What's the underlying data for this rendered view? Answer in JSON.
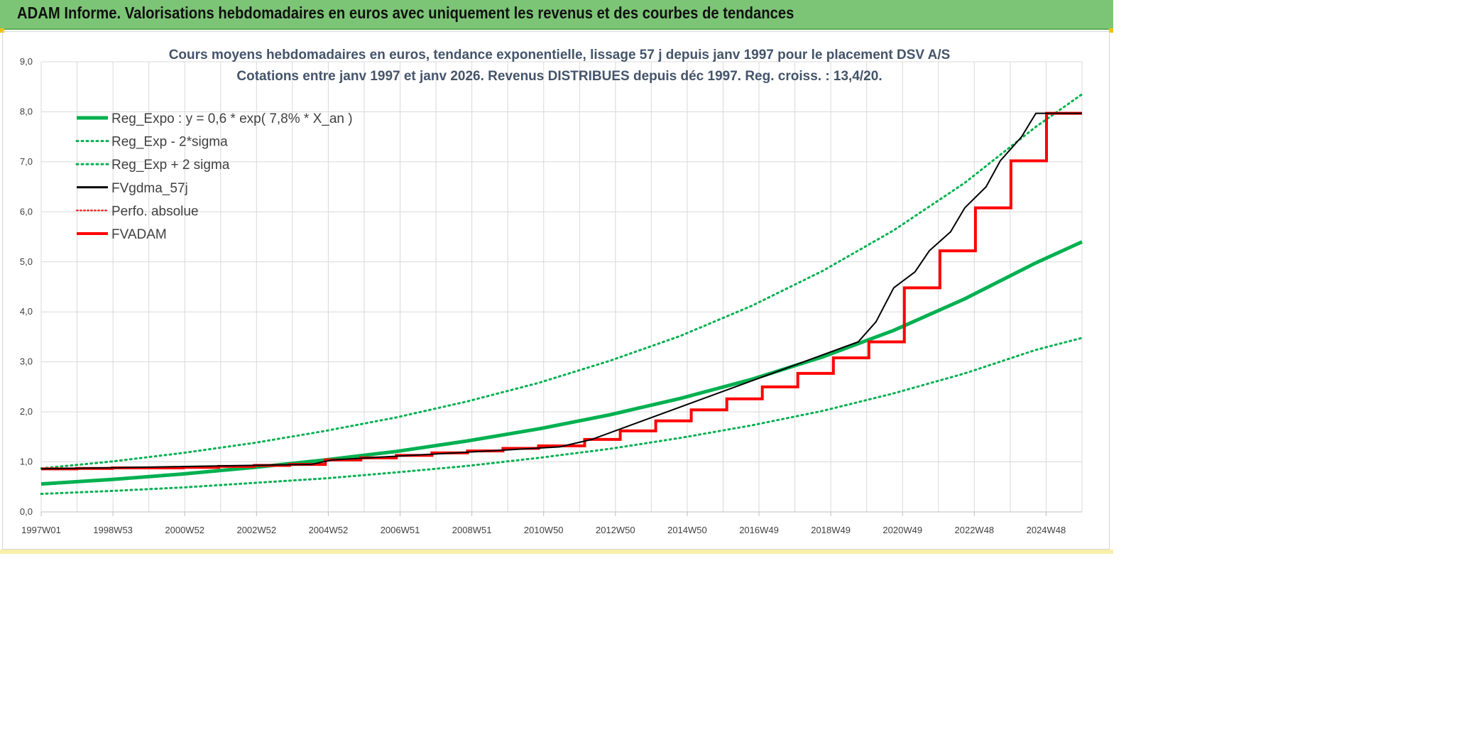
{
  "header": {
    "title": "ADAM Informe. Valorisations hebdomadaires en euros avec uniquement les revenus et des courbes de tendances"
  },
  "colors": {
    "header_bg": "#7cc576",
    "trend": "#00b050",
    "fvgdma": "#000000",
    "perfo": "#ff0000",
    "fvadam": "#ff0000",
    "grid": "#d9d9d9"
  },
  "chart_data": {
    "type": "line",
    "title": "Cours moyens hebdomadaires en euros, tendance exponentielle, lissage 57 j depuis janv 1997 pour le placement DSV A/S",
    "subtitle": "Cotations entre janv 1997 et janv 2026. Revenus DISTRIBUES depuis déc 1997. Reg. croiss. : 13,4/20.",
    "x_ticks": [
      "1997W01",
      "1998W53",
      "2000W52",
      "2002W52",
      "2004W52",
      "2006W51",
      "2008W51",
      "2010W50",
      "2012W50",
      "2014W50",
      "2016W49",
      "2018W49",
      "2020W49",
      "2022W48",
      "2024W48"
    ],
    "x_range": [
      1997.0,
      2026.3
    ],
    "ylim": [
      0,
      9
    ],
    "y_ticks": [
      "0,0",
      "1,0",
      "2,0",
      "3,0",
      "4,0",
      "5,0",
      "6,0",
      "7,0",
      "8,0",
      "9,0"
    ],
    "grid": true,
    "legend_position": "top-left",
    "legend": [
      {
        "label": "Reg_Expo : y = 0,6 * exp( 7,8% *  X_an )",
        "style": "solid-thick",
        "color": "#00b050"
      },
      {
        "label": "Reg_Exp - 2*sigma",
        "style": "dotted",
        "color": "#00b050"
      },
      {
        "label": "Reg_Exp + 2 sigma",
        "style": "dotted",
        "color": "#00b050"
      },
      {
        "label": "FVgdma_57j",
        "style": "solid",
        "color": "#000000"
      },
      {
        "label": "Perfo. absolue",
        "style": "dotted-thin",
        "color": "#ff0000"
      },
      {
        "label": "FVADAM",
        "style": "solid-thick",
        "color": "#ff0000"
      }
    ],
    "series": [
      {
        "name": "Reg_Expo : y = 0,6 * exp( 7,8% *  X_an )",
        "x": [
          1997,
          1999,
          2001,
          2003,
          2005,
          2007,
          2009,
          2011,
          2013,
          2015,
          2017,
          2019,
          2021,
          2023,
          2025,
          2026.3
        ],
        "y": [
          0.56,
          0.65,
          0.76,
          0.89,
          1.04,
          1.21,
          1.42,
          1.66,
          1.94,
          2.27,
          2.65,
          3.1,
          3.63,
          4.26,
          4.98,
          5.4
        ]
      },
      {
        "name": "Reg_Exp - 2*sigma",
        "x": [
          1997,
          1999,
          2001,
          2003,
          2005,
          2007,
          2009,
          2011,
          2013,
          2015,
          2017,
          2019,
          2021,
          2023,
          2025,
          2026.3
        ],
        "y": [
          0.36,
          0.42,
          0.49,
          0.58,
          0.67,
          0.79,
          0.92,
          1.08,
          1.26,
          1.48,
          1.73,
          2.02,
          2.37,
          2.77,
          3.24,
          3.48
        ]
      },
      {
        "name": "Reg_Exp + 2 sigma",
        "x": [
          1997,
          1999,
          2001,
          2003,
          2005,
          2007,
          2009,
          2011,
          2013,
          2015,
          2017,
          2019,
          2021,
          2023,
          2025,
          2026.3
        ],
        "y": [
          0.87,
          1.01,
          1.18,
          1.38,
          1.62,
          1.89,
          2.21,
          2.58,
          3.02,
          3.52,
          4.12,
          4.82,
          5.63,
          6.58,
          7.7,
          8.35
        ]
      },
      {
        "name": "FVADAM",
        "x": [
          1997.0,
          1998.0,
          1998.0,
          1999.0,
          1999.0,
          2000.0,
          2000.0,
          2001.0,
          2001.0,
          2002.0,
          2002.0,
          2003.0,
          2003.0,
          2004.0,
          2004.0,
          2005.0,
          2005.0,
          2006.0,
          2006.0,
          2007.0,
          2007.0,
          2008.0,
          2008.0,
          2009.0,
          2009.0,
          2010.0,
          2010.0,
          2011.0,
          2011.0,
          2012.3,
          2012.3,
          2013.3,
          2013.3,
          2014.3,
          2014.3,
          2015.3,
          2015.3,
          2016.3,
          2016.3,
          2017.3,
          2017.3,
          2018.3,
          2018.3,
          2019.3,
          2019.3,
          2020.3,
          2020.3,
          2021.3,
          2021.3,
          2022.3,
          2022.3,
          2023.3,
          2023.3,
          2024.3,
          2024.3,
          2025.3,
          2025.3,
          2026.3
        ],
        "y": [
          0.86,
          0.86,
          0.87,
          0.87,
          0.88,
          0.88,
          0.88,
          0.88,
          0.89,
          0.89,
          0.91,
          0.91,
          0.93,
          0.93,
          0.95,
          0.95,
          1.04,
          1.04,
          1.08,
          1.08,
          1.13,
          1.13,
          1.18,
          1.18,
          1.22,
          1.22,
          1.27,
          1.27,
          1.32,
          1.32,
          1.45,
          1.45,
          1.62,
          1.62,
          1.82,
          1.82,
          2.04,
          2.04,
          2.26,
          2.26,
          2.5,
          2.5,
          2.77,
          2.77,
          3.08,
          3.08,
          3.4,
          3.4,
          4.48,
          4.48,
          5.22,
          5.22,
          6.08,
          6.08,
          7.02,
          7.02,
          7.97,
          7.97
        ]
      },
      {
        "name": "FVgdma_57j",
        "x": [
          1997.0,
          2004.6,
          2005.2,
          2011.6,
          2012.5,
          2020.0,
          2020.5,
          2021.0,
          2021.6,
          2022.0,
          2022.6,
          2023.0,
          2023.6,
          2024.0,
          2024.6,
          2025.0,
          2025.6,
          2026.3
        ],
        "y": [
          0.86,
          0.95,
          1.04,
          1.3,
          1.45,
          3.4,
          3.8,
          4.48,
          4.8,
          5.22,
          5.6,
          6.08,
          6.5,
          7.02,
          7.5,
          7.97,
          7.97,
          7.97
        ]
      }
    ]
  }
}
